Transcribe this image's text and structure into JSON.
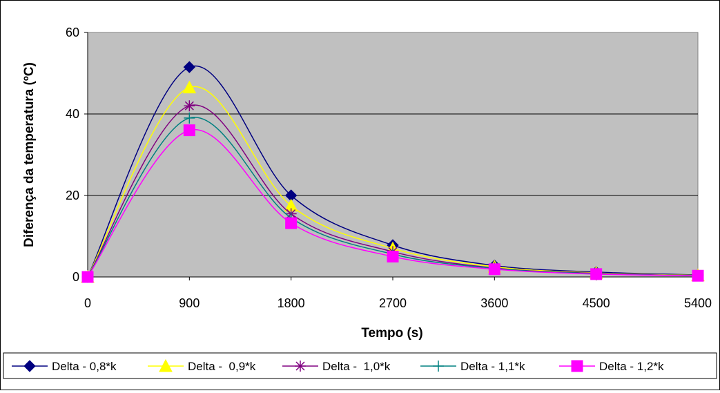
{
  "chart_data": {
    "type": "line",
    "title": "",
    "xlabel": "Tempo (s)",
    "ylabel": "Diferença da temperatura (ºC)",
    "x_ticks": [
      "0",
      "900",
      "1800",
      "2700",
      "3600",
      "4500",
      "5400"
    ],
    "y_ticks": [
      "0",
      "20",
      "40",
      "60"
    ],
    "xlim": [
      0,
      5400
    ],
    "ylim": [
      0,
      60
    ],
    "grid": "horizontal",
    "plot_background": "#c0c0c0",
    "legend_position": "bottom",
    "x": [
      0,
      900,
      1800,
      2700,
      3600,
      4500,
      5400
    ],
    "series": [
      {
        "name": "Delta - 0,8*k",
        "color": "#000080",
        "marker": "diamond",
        "values": [
          0,
          51.5,
          20,
          7.8,
          2.8,
          1.2,
          0.5
        ]
      },
      {
        "name": "Delta -  0,9*k",
        "color": "#ffff00",
        "marker": "triangle",
        "values": [
          0,
          46.5,
          17.5,
          7,
          2.5,
          1.0,
          0.4
        ]
      },
      {
        "name": "Delta -  1,0*k",
        "color": "#800080",
        "marker": "asterisk",
        "values": [
          0,
          42,
          15.5,
          6.2,
          2.2,
          0.9,
          0.3
        ]
      },
      {
        "name": "Delta - 1,1*k",
        "color": "#008080",
        "marker": "plus",
        "values": [
          0,
          39,
          14.5,
          5.6,
          2.1,
          0.8,
          0.3
        ]
      },
      {
        "name": "Delta - 1,2*k",
        "color": "#ff00ff",
        "marker": "square",
        "values": [
          0,
          36,
          13.2,
          5.0,
          1.9,
          0.7,
          0.3
        ]
      }
    ]
  }
}
